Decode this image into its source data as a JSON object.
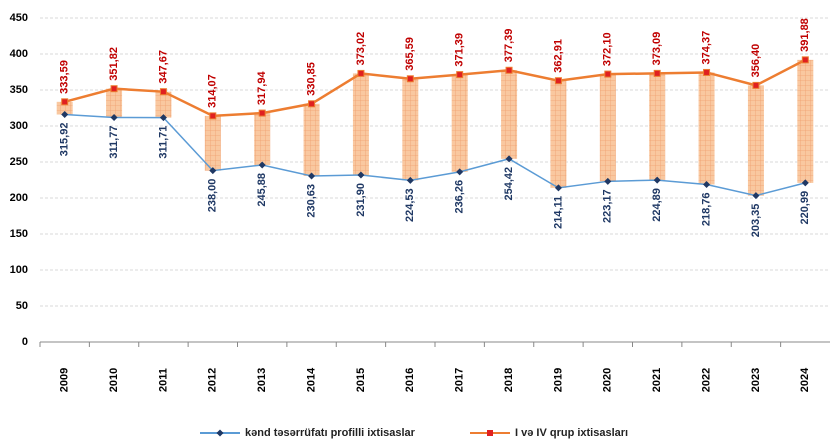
{
  "chart_data": {
    "type": "line",
    "categories": [
      "2009",
      "2010",
      "2011",
      "2012",
      "2013",
      "2014",
      "2015",
      "2016",
      "2017",
      "2018",
      "2019",
      "2020",
      "2021",
      "2022",
      "2023",
      "2024"
    ],
    "series": [
      {
        "name": "kənd təsərrüfatı profilli ixtisaslar",
        "color": "#5b9bd5",
        "marker_color": "#1f3864",
        "label_color": "#1f3864",
        "values": [
          315.92,
          311.77,
          311.71,
          238.0,
          245.88,
          230.63,
          231.9,
          224.53,
          236.26,
          254.42,
          214.11,
          223.17,
          224.89,
          218.76,
          203.35,
          220.99
        ],
        "value_labels": [
          "315,92",
          "311,77",
          "311,71",
          "238,00",
          "245,88",
          "230,63",
          "231,90",
          "224,53",
          "236,26",
          "254,42",
          "214,11",
          "223,17",
          "224,89",
          "218,76",
          "203,35",
          "220,99"
        ]
      },
      {
        "name": "I və IV qrup ixtisasları",
        "color": "#ed7d31",
        "marker_color": "#e02020",
        "label_color": "#c00000",
        "values": [
          333.59,
          351.82,
          347.67,
          314.07,
          317.94,
          330.85,
          373.02,
          365.59,
          371.39,
          377.39,
          362.91,
          372.1,
          373.09,
          374.37,
          356.4,
          391.88
        ],
        "value_labels": [
          "333,59",
          "351,82",
          "347,67",
          "314,07",
          "317,94",
          "330,85",
          "373,02",
          "365,59",
          "371,39",
          "377,39",
          "362,91",
          "372,10",
          "373,09",
          "374,37",
          "356,40",
          "391,88"
        ]
      }
    ],
    "high_low_bars": true,
    "ylim": [
      0,
      450
    ],
    "yticks": [
      0,
      50,
      100,
      150,
      200,
      250,
      300,
      350,
      400,
      450
    ],
    "grid": true
  }
}
